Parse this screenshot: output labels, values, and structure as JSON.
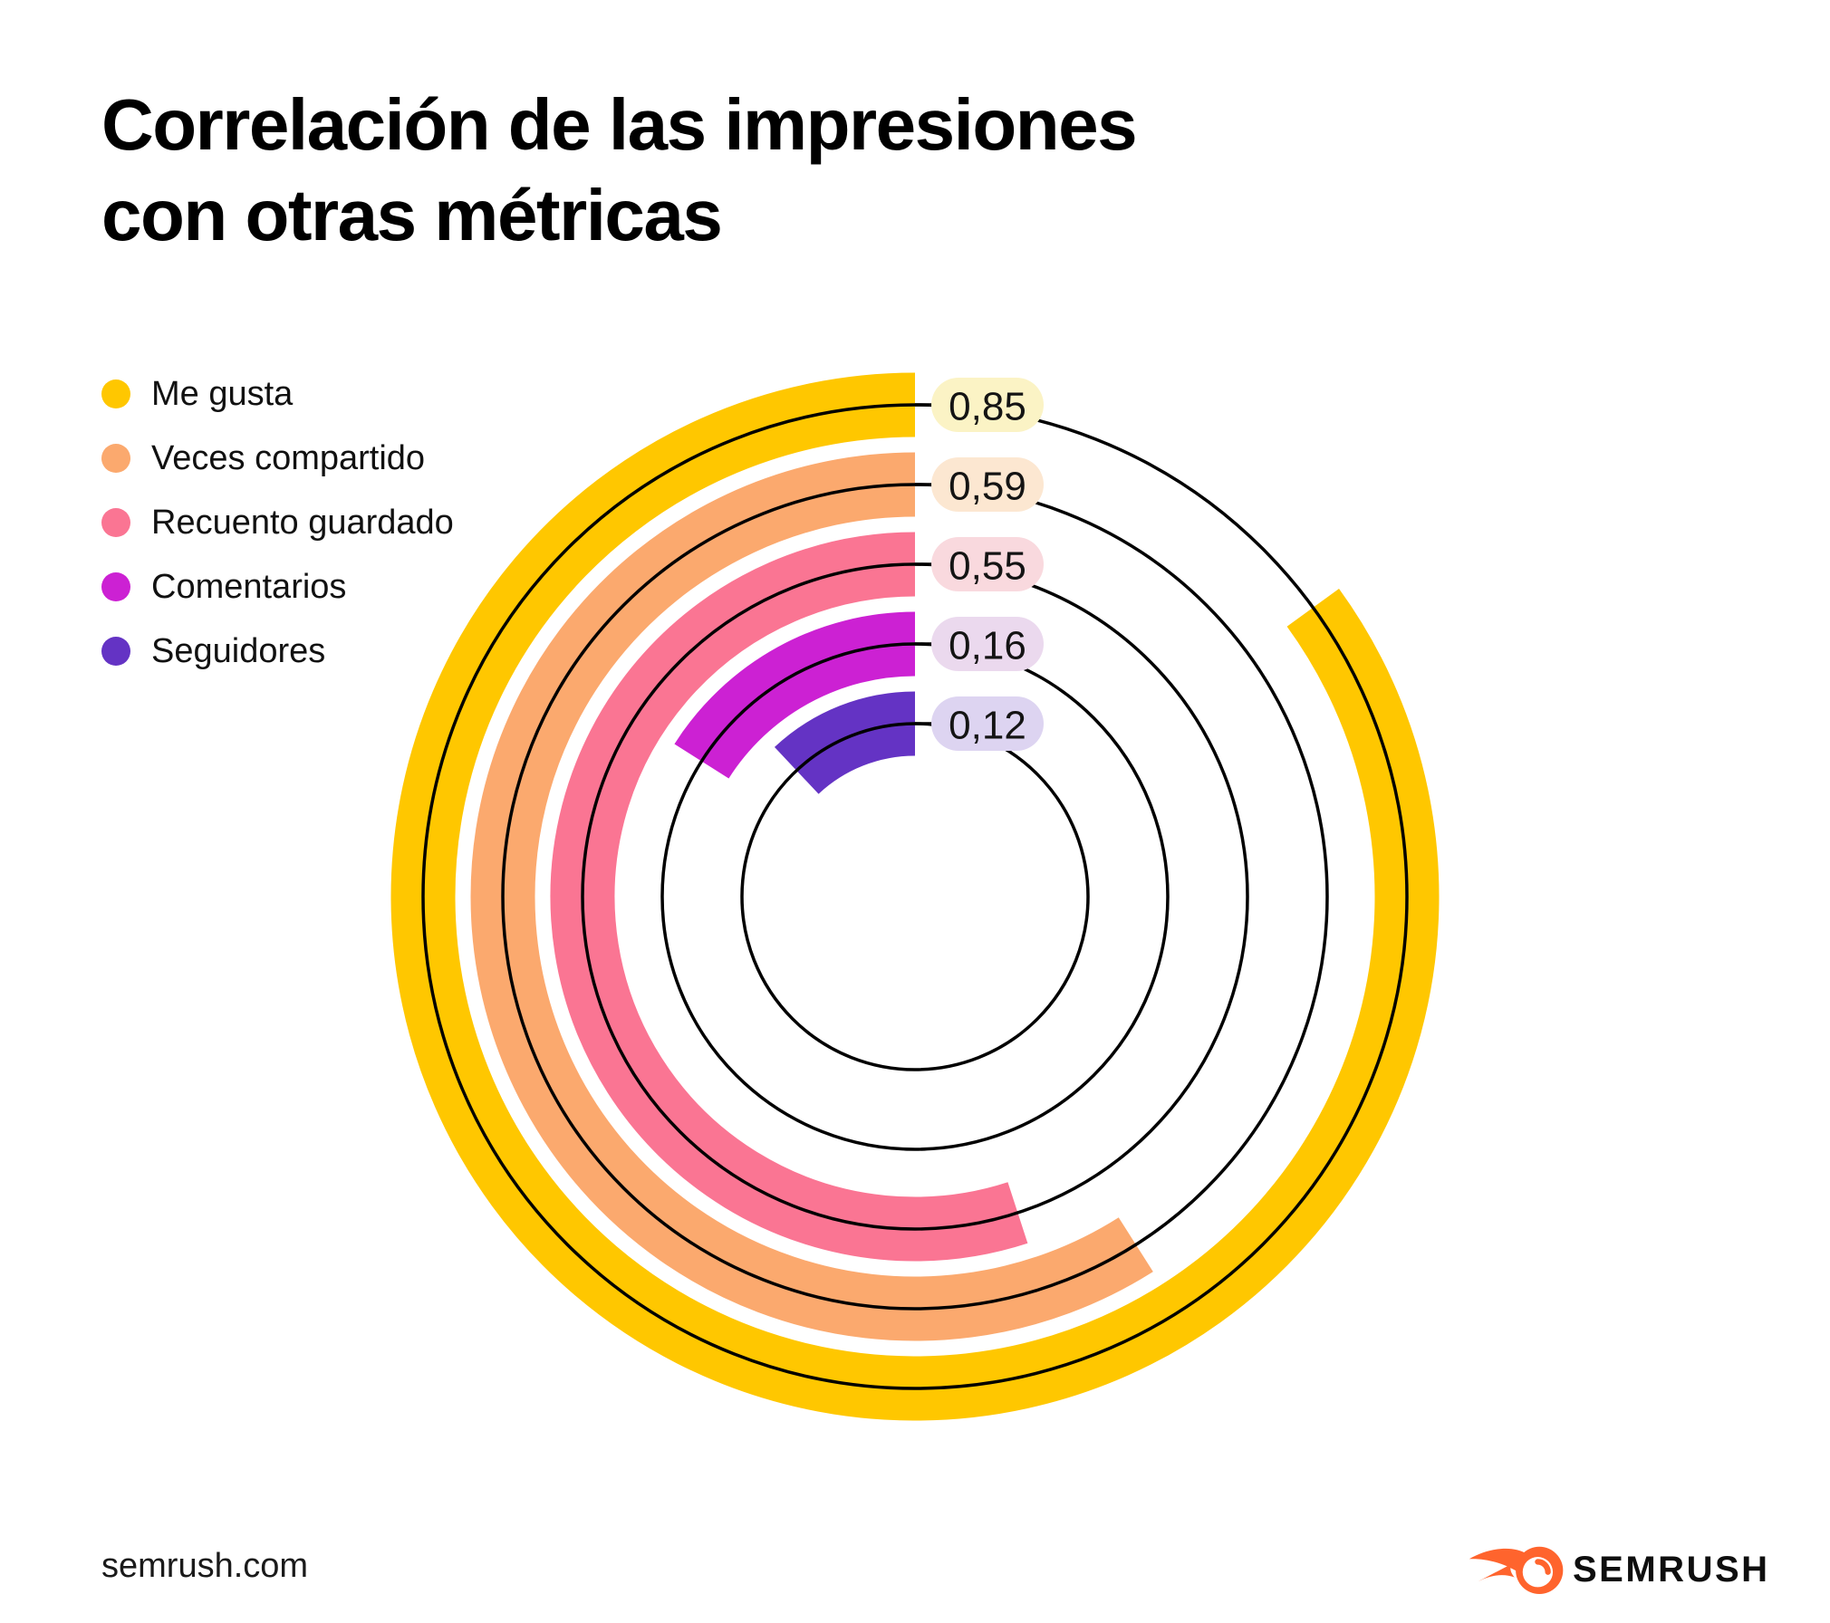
{
  "title": {
    "line1": "Correlación de las impresiones",
    "line2": "con otras métricas"
  },
  "chart_data": {
    "type": "radial-bar",
    "title": "Correlación de las impresiones con otras métricas",
    "value_range": [
      0,
      1
    ],
    "start_angle_deg": 0,
    "direction": "counterclockwise",
    "guide_circles": true,
    "legend_position": "top-left",
    "series": [
      {
        "name": "Me gusta",
        "value": 0.85,
        "label": "0,85",
        "color": "#FFC700",
        "badge_bg": "#FBF3C5"
      },
      {
        "name": "Veces compartido",
        "value": 0.59,
        "label": "0,59",
        "color": "#FBA96E",
        "badge_bg": "#FCE7D1"
      },
      {
        "name": "Recuento guardado",
        "value": 0.55,
        "label": "0,55",
        "color": "#FA7593",
        "badge_bg": "#F9D9DE"
      },
      {
        "name": "Comentarios",
        "value": 0.16,
        "label": "0,16",
        "color": "#CC21D3",
        "badge_bg": "#EBD9EE"
      },
      {
        "name": "Seguidores",
        "value": 0.12,
        "label": "0,12",
        "color": "#6433C4",
        "badge_bg": "#DDD4F1"
      }
    ],
    "badge_text_color": "#141414",
    "guide_line_color": "#000000"
  },
  "footer": {
    "site": "semrush.com",
    "brand": "SEMRUSH",
    "brand_color": "#FF642D"
  }
}
